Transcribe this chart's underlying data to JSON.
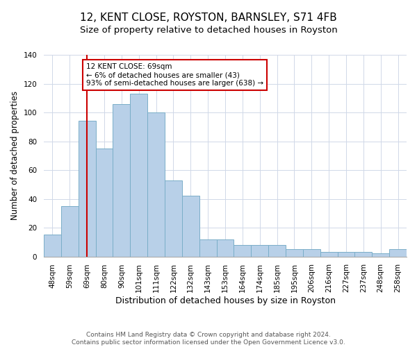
{
  "title": "12, KENT CLOSE, ROYSTON, BARNSLEY, S71 4FB",
  "subtitle": "Size of property relative to detached houses in Royston",
  "xlabel": "Distribution of detached houses by size in Royston",
  "ylabel": "Number of detached properties",
  "bar_labels": [
    "48sqm",
    "59sqm",
    "69sqm",
    "80sqm",
    "90sqm",
    "101sqm",
    "111sqm",
    "122sqm",
    "132sqm",
    "143sqm",
    "153sqm",
    "164sqm",
    "174sqm",
    "185sqm",
    "195sqm",
    "206sqm",
    "216sqm",
    "227sqm",
    "237sqm",
    "248sqm",
    "258sqm"
  ],
  "bar_values": [
    15,
    35,
    94,
    75,
    106,
    113,
    100,
    53,
    42,
    12,
    12,
    8,
    8,
    8,
    5,
    5,
    3,
    3,
    3,
    2,
    5
  ],
  "bar_color": "#b8d0e8",
  "bar_edge_color": "#7aaec8",
  "vline_x_index": 2,
  "vline_color": "#cc0000",
  "annotation_text": "12 KENT CLOSE: 69sqm\n← 6% of detached houses are smaller (43)\n93% of semi-detached houses are larger (638) →",
  "annotation_box_color": "#ffffff",
  "annotation_border_color": "#cc0000",
  "ylim": [
    0,
    140
  ],
  "yticks": [
    0,
    20,
    40,
    60,
    80,
    100,
    120,
    140
  ],
  "footer_text": "Contains HM Land Registry data © Crown copyright and database right 2024.\nContains public sector information licensed under the Open Government Licence v3.0.",
  "title_fontsize": 11,
  "subtitle_fontsize": 9.5,
  "xlabel_fontsize": 9,
  "ylabel_fontsize": 8.5,
  "tick_fontsize": 7.5,
  "footer_fontsize": 6.5,
  "annotation_fontsize": 7.5
}
